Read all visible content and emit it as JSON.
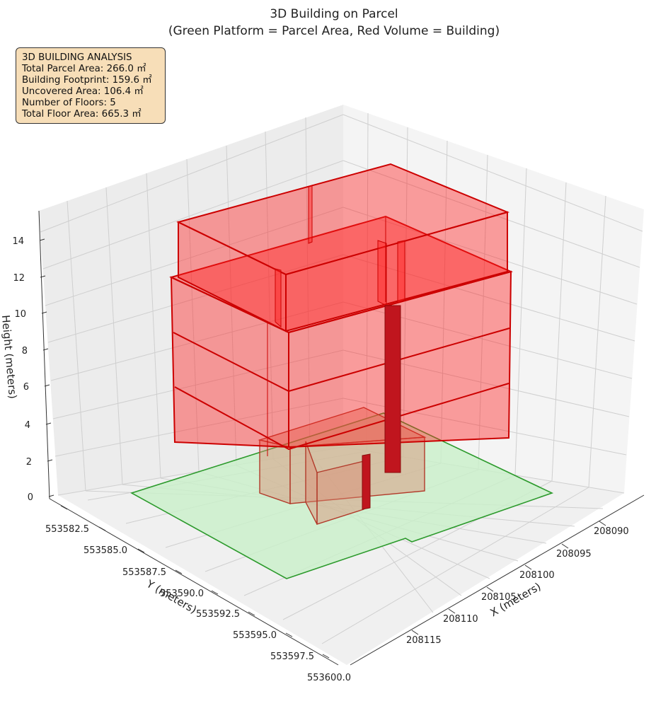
{
  "chart_data": {
    "type": "3d-polygons",
    "title": [
      "3D Building on Parcel",
      "(Green Platform = Parcel Area, Red Volume = Building)"
    ],
    "xlabel": "X (meters)",
    "ylabel": "Y (meters)",
    "zlabel": "Height (meters)",
    "x_ticks": [
      "208090",
      "208095",
      "208100",
      "208105",
      "208110",
      "208115"
    ],
    "y_ticks": [
      "553582.5",
      "553585.0",
      "553587.5",
      "553590.0",
      "553592.5",
      "553595.0",
      "553597.5",
      "553600.0"
    ],
    "z_ticks": [
      "0",
      "2",
      "4",
      "6",
      "8",
      "10",
      "12",
      "14"
    ],
    "grid": true,
    "parcel_color": "#c9f0c9",
    "building_color": "#ff2020",
    "annotation": {
      "heading": "3D BUILDING ANALYSIS",
      "lines": [
        "Total Parcel Area: 266.0 ㎡",
        "Building Footprint: 159.6 ㎡",
        "Uncovered Area: 106.4 ㎡",
        "Number of Floors: 5",
        "Total Floor Area: 665.3 ㎡"
      ]
    }
  }
}
